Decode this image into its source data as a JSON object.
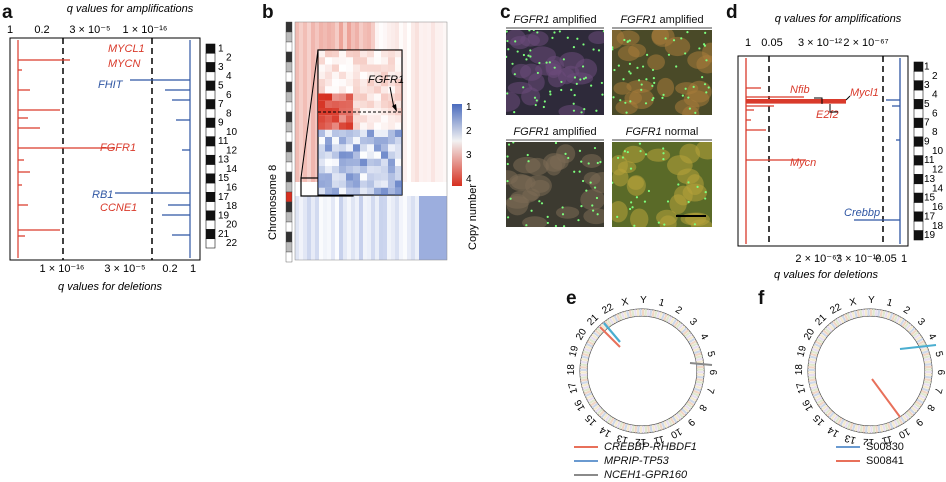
{
  "panels": {
    "a": {
      "label": "a",
      "top_axis_title": "q values for amplifications",
      "top_ticks": [
        "1",
        "0.2",
        "3 × 10⁻⁵",
        "1 × 10⁻¹⁶"
      ],
      "bottom_axis_title": "q values for deletions",
      "bottom_ticks": [
        "1 × 10⁻¹⁶",
        "3 × 10⁻⁵",
        "0.2",
        "1"
      ],
      "amp_genes": [
        "MYCL1",
        "MYCN",
        "FGFR1",
        "CCNE1"
      ],
      "del_genes": [
        "FHIT",
        "RB1"
      ],
      "chromosomes": [
        "1",
        "2",
        "3",
        "4",
        "5",
        "6",
        "7",
        "8",
        "9",
        "10",
        "11",
        "12",
        "13",
        "14",
        "15",
        "16",
        "17",
        "18",
        "19",
        "20",
        "21",
        "22"
      ]
    },
    "b": {
      "label": "b",
      "gene": "FGFR1",
      "side_label": "Chromosome 8",
      "colorbar_title": "Copy number",
      "colorbar_ticks": [
        "1",
        "2",
        "3",
        "4"
      ]
    },
    "c": {
      "label": "c",
      "images": [
        {
          "gene": "FGFR1",
          "status": "amplified"
        },
        {
          "gene": "FGFR1",
          "status": "amplified"
        },
        {
          "gene": "FGFR1",
          "status": "amplified"
        },
        {
          "gene": "FGFR1",
          "status": "normal"
        }
      ]
    },
    "d": {
      "label": "d",
      "top_axis_title": "q values for amplifications",
      "top_ticks": [
        "1",
        "0.05",
        "3 × 10⁻¹²",
        "2 × 10⁻⁶⁷"
      ],
      "bottom_axis_title": "q values for deletions",
      "bottom_ticks": [
        "2 × 10⁻⁶⁷",
        "3 × 10⁻¹²",
        "0.05",
        "1"
      ],
      "amp_genes": [
        "Nfib",
        "Mycl1",
        "E2f2",
        "Mycn"
      ],
      "del_genes": [
        "Crebbp"
      ],
      "chromosomes": [
        "1",
        "2",
        "3",
        "4",
        "5",
        "6",
        "7",
        "8",
        "9",
        "10",
        "11",
        "12",
        "13",
        "14",
        "15",
        "16",
        "17",
        "18",
        "19"
      ]
    },
    "e": {
      "label": "e",
      "chromosomes": [
        "1",
        "2",
        "3",
        "4",
        "5",
        "6",
        "7",
        "8",
        "9",
        "10",
        "11",
        "12",
        "13",
        "14",
        "15",
        "16",
        "17",
        "18",
        "19",
        "20",
        "21",
        "22",
        "X",
        "Y"
      ],
      "legend": [
        {
          "name": "CREBBP-RHBDF1",
          "color": "#e8705a"
        },
        {
          "name": "MPRIP-TP53",
          "color": "#6a9ad0"
        },
        {
          "name": "NCEH1-GPR160",
          "color": "#8a8a8a"
        }
      ]
    },
    "f": {
      "label": "f",
      "chromosomes": [
        "1",
        "2",
        "3",
        "4",
        "5",
        "6",
        "7",
        "8",
        "9",
        "10",
        "11",
        "12",
        "13",
        "14",
        "15",
        "16",
        "17",
        "18",
        "19",
        "20",
        "21",
        "22",
        "X",
        "Y"
      ],
      "legend": [
        {
          "name": "S00830",
          "color": "#6a9ad0"
        },
        {
          "name": "S00841",
          "color": "#e8705a"
        }
      ]
    }
  },
  "colors": {
    "amplification": "#d93a2b",
    "deletion": "#2f56a3"
  }
}
